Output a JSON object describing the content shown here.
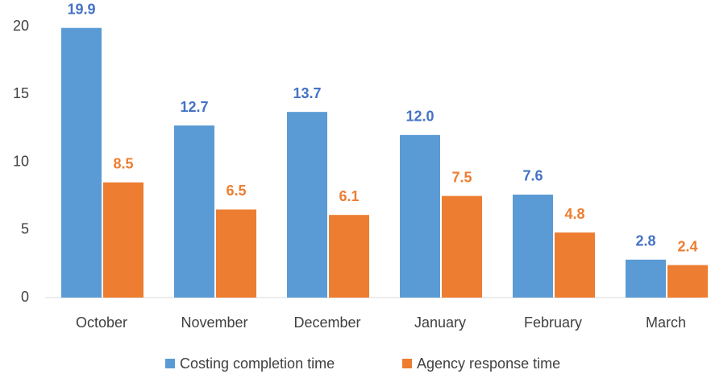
{
  "chart_data": {
    "type": "bar",
    "categories": [
      "October",
      "November",
      "December",
      "January",
      "February",
      "March"
    ],
    "series": [
      {
        "name": "Costing completion time",
        "color": "#5b9bd5",
        "values": [
          19.9,
          12.7,
          13.7,
          12.0,
          7.6,
          2.8
        ],
        "value_labels": [
          "19.9",
          "12.7",
          "13.7",
          "12.0",
          "7.6",
          "2.8"
        ]
      },
      {
        "name": "Agency response time",
        "color": "#ed7d31",
        "values": [
          8.5,
          6.5,
          6.1,
          7.5,
          4.8,
          2.4
        ],
        "value_labels": [
          "8.5",
          "6.5",
          "6.1",
          "7.5",
          "4.8",
          "2.4"
        ]
      }
    ],
    "ylim": [
      0,
      20
    ],
    "yticks": [
      0,
      5,
      10,
      15,
      20
    ],
    "grid": false,
    "legend": "bottom"
  }
}
